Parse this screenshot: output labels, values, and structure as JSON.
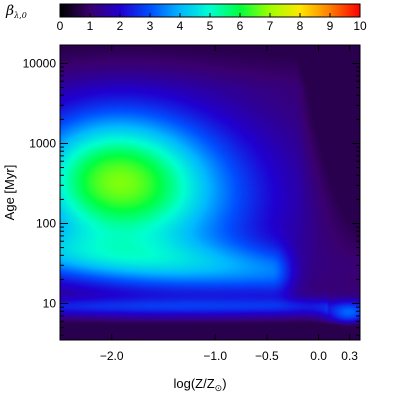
{
  "chart_data": {
    "type": "heatmap",
    "colorbar": {
      "label": "β",
      "label_subscript": "λ,0",
      "min": 0,
      "max": 10,
      "ticks": [
        "0",
        "1",
        "2",
        "3",
        "4",
        "5",
        "6",
        "7",
        "8",
        "9",
        "10"
      ],
      "colormap": [
        "#000000",
        "#3a006e",
        "#2000d0",
        "#0050ff",
        "#00b8ff",
        "#00ffd0",
        "#00ff40",
        "#a0ff00",
        "#ffe800",
        "#ff8000",
        "#ff0000"
      ]
    },
    "x_axis": {
      "label": "log(Z/Z",
      "label_sub": "⊙",
      "label_end": ")",
      "range": [
        -2.5,
        0.4
      ],
      "ticks": [
        {
          "value": -2.0,
          "label": "−2.0"
        },
        {
          "value": -1.0,
          "label": "−1.0"
        },
        {
          "value": -0.5,
          "label": "−0.5"
        },
        {
          "value": 0.0,
          "label": "0.0"
        },
        {
          "value": 0.3,
          "label": "0.3"
        }
      ]
    },
    "y_axis": {
      "label": "Age [Myr]",
      "scale": "log",
      "range": [
        3.5,
        17000
      ],
      "ticks": [
        {
          "value": 10,
          "label": "10"
        },
        {
          "value": 100,
          "label": "100"
        },
        {
          "value": 1000,
          "label": "1000"
        },
        {
          "value": 10000,
          "label": "10000"
        }
      ]
    },
    "features": {
      "blob_centers_beta": [
        {
          "x": -2.0,
          "y": 600,
          "v": 5.5
        },
        {
          "x": -2.0,
          "y": 200,
          "v": 5.2
        },
        {
          "x": -1.5,
          "y": 300,
          "v": 5.0
        },
        {
          "x": -0.9,
          "y": 40,
          "v": 4.8
        },
        {
          "x": -0.7,
          "y": 20,
          "v": 4.5
        }
      ]
    }
  }
}
